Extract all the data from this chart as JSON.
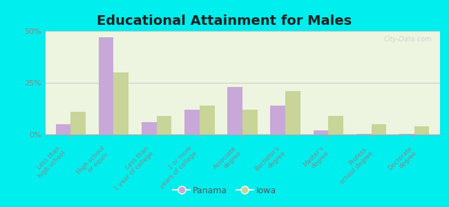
{
  "title": "Educational Attainment for Males",
  "categories": [
    "Less than\nhigh school",
    "High school\nor equiv.",
    "Less than\n1 year of college",
    "1 or more\nyears of college",
    "Associate\ndegree",
    "Bachelor's\ndegree",
    "Master's\ndegree",
    "Profess.\nschool degree",
    "Doctorate\ndegree"
  ],
  "panama_values": [
    5,
    47,
    6,
    12,
    23,
    14,
    2,
    0.5,
    0.5
  ],
  "iowa_values": [
    11,
    30,
    9,
    14,
    12,
    21,
    9,
    5,
    4
  ],
  "panama_color": "#c8a8d8",
  "iowa_color": "#c8d498",
  "background_color": "#00eeee",
  "plot_bg_color": "#edf5e0",
  "ylim": [
    0,
    50
  ],
  "yticks": [
    0,
    25,
    50
  ],
  "ytick_labels": [
    "0%",
    "25%",
    "50%"
  ],
  "bar_width": 0.35,
  "legend_labels": [
    "Panama",
    "Iowa"
  ],
  "title_fontsize": 14,
  "tick_label_color": "#888888",
  "watermark": "City-Data.com"
}
